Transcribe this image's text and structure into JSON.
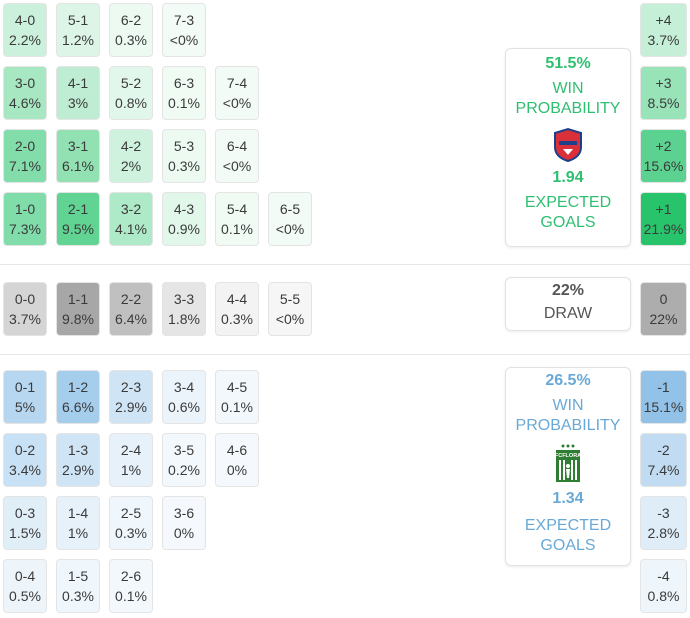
{
  "home": {
    "win_probability": "51.5%",
    "win_label_1": "WIN",
    "win_label_2": "PROBABILITY",
    "crest_icon": "valur-crest-icon",
    "expected_goals": "1.94",
    "eg_label_1": "EXPECTED",
    "eg_label_2": "GOALS",
    "color": "#2fbf71"
  },
  "draw": {
    "probability": "22%",
    "label": "DRAW"
  },
  "away": {
    "win_probability": "26.5%",
    "win_label_1": "WIN",
    "win_label_2": "PROBABILITY",
    "crest_icon": "fcflora-crest-icon",
    "crest_text": "FCFLORA",
    "expected_goals": "1.34",
    "eg_label_1": "EXPECTED",
    "eg_label_2": "GOALS",
    "color": "#6aa9d6"
  },
  "home_scores": [
    {
      "score": "4-0",
      "pct": "2.2%",
      "p": 2.2,
      "row": 0,
      "col": 0
    },
    {
      "score": "5-1",
      "pct": "1.2%",
      "p": 1.2,
      "row": 0,
      "col": 1
    },
    {
      "score": "6-2",
      "pct": "0.3%",
      "p": 0.3,
      "row": 0,
      "col": 2
    },
    {
      "score": "7-3",
      "pct": "<0%",
      "p": 0,
      "row": 0,
      "col": 3
    },
    {
      "score": "3-0",
      "pct": "4.6%",
      "p": 4.6,
      "row": 1,
      "col": 0
    },
    {
      "score": "4-1",
      "pct": "3%",
      "p": 3,
      "row": 1,
      "col": 1
    },
    {
      "score": "5-2",
      "pct": "0.8%",
      "p": 0.8,
      "row": 1,
      "col": 2
    },
    {
      "score": "6-3",
      "pct": "0.1%",
      "p": 0.1,
      "row": 1,
      "col": 3
    },
    {
      "score": "7-4",
      "pct": "<0%",
      "p": 0,
      "row": 1,
      "col": 4
    },
    {
      "score": "2-0",
      "pct": "7.1%",
      "p": 7.1,
      "row": 2,
      "col": 0
    },
    {
      "score": "3-1",
      "pct": "6.1%",
      "p": 6.1,
      "row": 2,
      "col": 1
    },
    {
      "score": "4-2",
      "pct": "2%",
      "p": 2,
      "row": 2,
      "col": 2
    },
    {
      "score": "5-3",
      "pct": "0.3%",
      "p": 0.3,
      "row": 2,
      "col": 3
    },
    {
      "score": "6-4",
      "pct": "<0%",
      "p": 0,
      "row": 2,
      "col": 4
    },
    {
      "score": "1-0",
      "pct": "7.3%",
      "p": 7.3,
      "row": 3,
      "col": 0
    },
    {
      "score": "2-1",
      "pct": "9.5%",
      "p": 9.5,
      "row": 3,
      "col": 1
    },
    {
      "score": "3-2",
      "pct": "4.1%",
      "p": 4.1,
      "row": 3,
      "col": 2
    },
    {
      "score": "4-3",
      "pct": "0.9%",
      "p": 0.9,
      "row": 3,
      "col": 3
    },
    {
      "score": "5-4",
      "pct": "0.1%",
      "p": 0.1,
      "row": 3,
      "col": 4
    },
    {
      "score": "6-5",
      "pct": "<0%",
      "p": 0,
      "row": 3,
      "col": 5
    }
  ],
  "draw_scores": [
    {
      "score": "0-0",
      "pct": "3.7%",
      "p": 3.7,
      "row": 0,
      "col": 0
    },
    {
      "score": "1-1",
      "pct": "9.8%",
      "p": 9.8,
      "row": 0,
      "col": 1
    },
    {
      "score": "2-2",
      "pct": "6.4%",
      "p": 6.4,
      "row": 0,
      "col": 2
    },
    {
      "score": "3-3",
      "pct": "1.8%",
      "p": 1.8,
      "row": 0,
      "col": 3
    },
    {
      "score": "4-4",
      "pct": "0.3%",
      "p": 0.3,
      "row": 0,
      "col": 4
    },
    {
      "score": "5-5",
      "pct": "<0%",
      "p": 0,
      "row": 0,
      "col": 5
    }
  ],
  "away_scores": [
    {
      "score": "0-1",
      "pct": "5%",
      "p": 5,
      "row": 0,
      "col": 0
    },
    {
      "score": "1-2",
      "pct": "6.6%",
      "p": 6.6,
      "row": 0,
      "col": 1
    },
    {
      "score": "2-3",
      "pct": "2.9%",
      "p": 2.9,
      "row": 0,
      "col": 2
    },
    {
      "score": "3-4",
      "pct": "0.6%",
      "p": 0.6,
      "row": 0,
      "col": 3
    },
    {
      "score": "4-5",
      "pct": "0.1%",
      "p": 0.1,
      "row": 0,
      "col": 4
    },
    {
      "score": "0-2",
      "pct": "3.4%",
      "p": 3.4,
      "row": 1,
      "col": 0
    },
    {
      "score": "1-3",
      "pct": "2.9%",
      "p": 2.9,
      "row": 1,
      "col": 1
    },
    {
      "score": "2-4",
      "pct": "1%",
      "p": 1,
      "row": 1,
      "col": 2
    },
    {
      "score": "3-5",
      "pct": "0.2%",
      "p": 0.2,
      "row": 1,
      "col": 3
    },
    {
      "score": "4-6",
      "pct": "0%",
      "p": 0,
      "row": 1,
      "col": 4
    },
    {
      "score": "0-3",
      "pct": "1.5%",
      "p": 1.5,
      "row": 2,
      "col": 0
    },
    {
      "score": "1-4",
      "pct": "1%",
      "p": 1,
      "row": 2,
      "col": 1
    },
    {
      "score": "2-5",
      "pct": "0.3%",
      "p": 0.3,
      "row": 2,
      "col": 2
    },
    {
      "score": "3-6",
      "pct": "0%",
      "p": 0,
      "row": 2,
      "col": 3
    },
    {
      "score": "0-4",
      "pct": "0.5%",
      "p": 0.5,
      "row": 3,
      "col": 0
    },
    {
      "score": "1-5",
      "pct": "0.3%",
      "p": 0.3,
      "row": 3,
      "col": 1
    },
    {
      "score": "2-6",
      "pct": "0.1%",
      "p": 0.1,
      "row": 3,
      "col": 2
    }
  ],
  "home_margins": [
    {
      "margin": "+4",
      "pct": "3.7%",
      "p": 3.7
    },
    {
      "margin": "+3",
      "pct": "8.5%",
      "p": 8.5
    },
    {
      "margin": "+2",
      "pct": "15.6%",
      "p": 15.6
    },
    {
      "margin": "+1",
      "pct": "21.9%",
      "p": 21.9
    }
  ],
  "draw_margin": {
    "margin": "0",
    "pct": "22%",
    "p": 22
  },
  "away_margins": [
    {
      "margin": "-1",
      "pct": "15.1%",
      "p": 15.1
    },
    {
      "margin": "-2",
      "pct": "7.4%",
      "p": 7.4
    },
    {
      "margin": "-3",
      "pct": "2.8%",
      "p": 2.8
    },
    {
      "margin": "-4",
      "pct": "0.8%",
      "p": 0.8
    }
  ]
}
